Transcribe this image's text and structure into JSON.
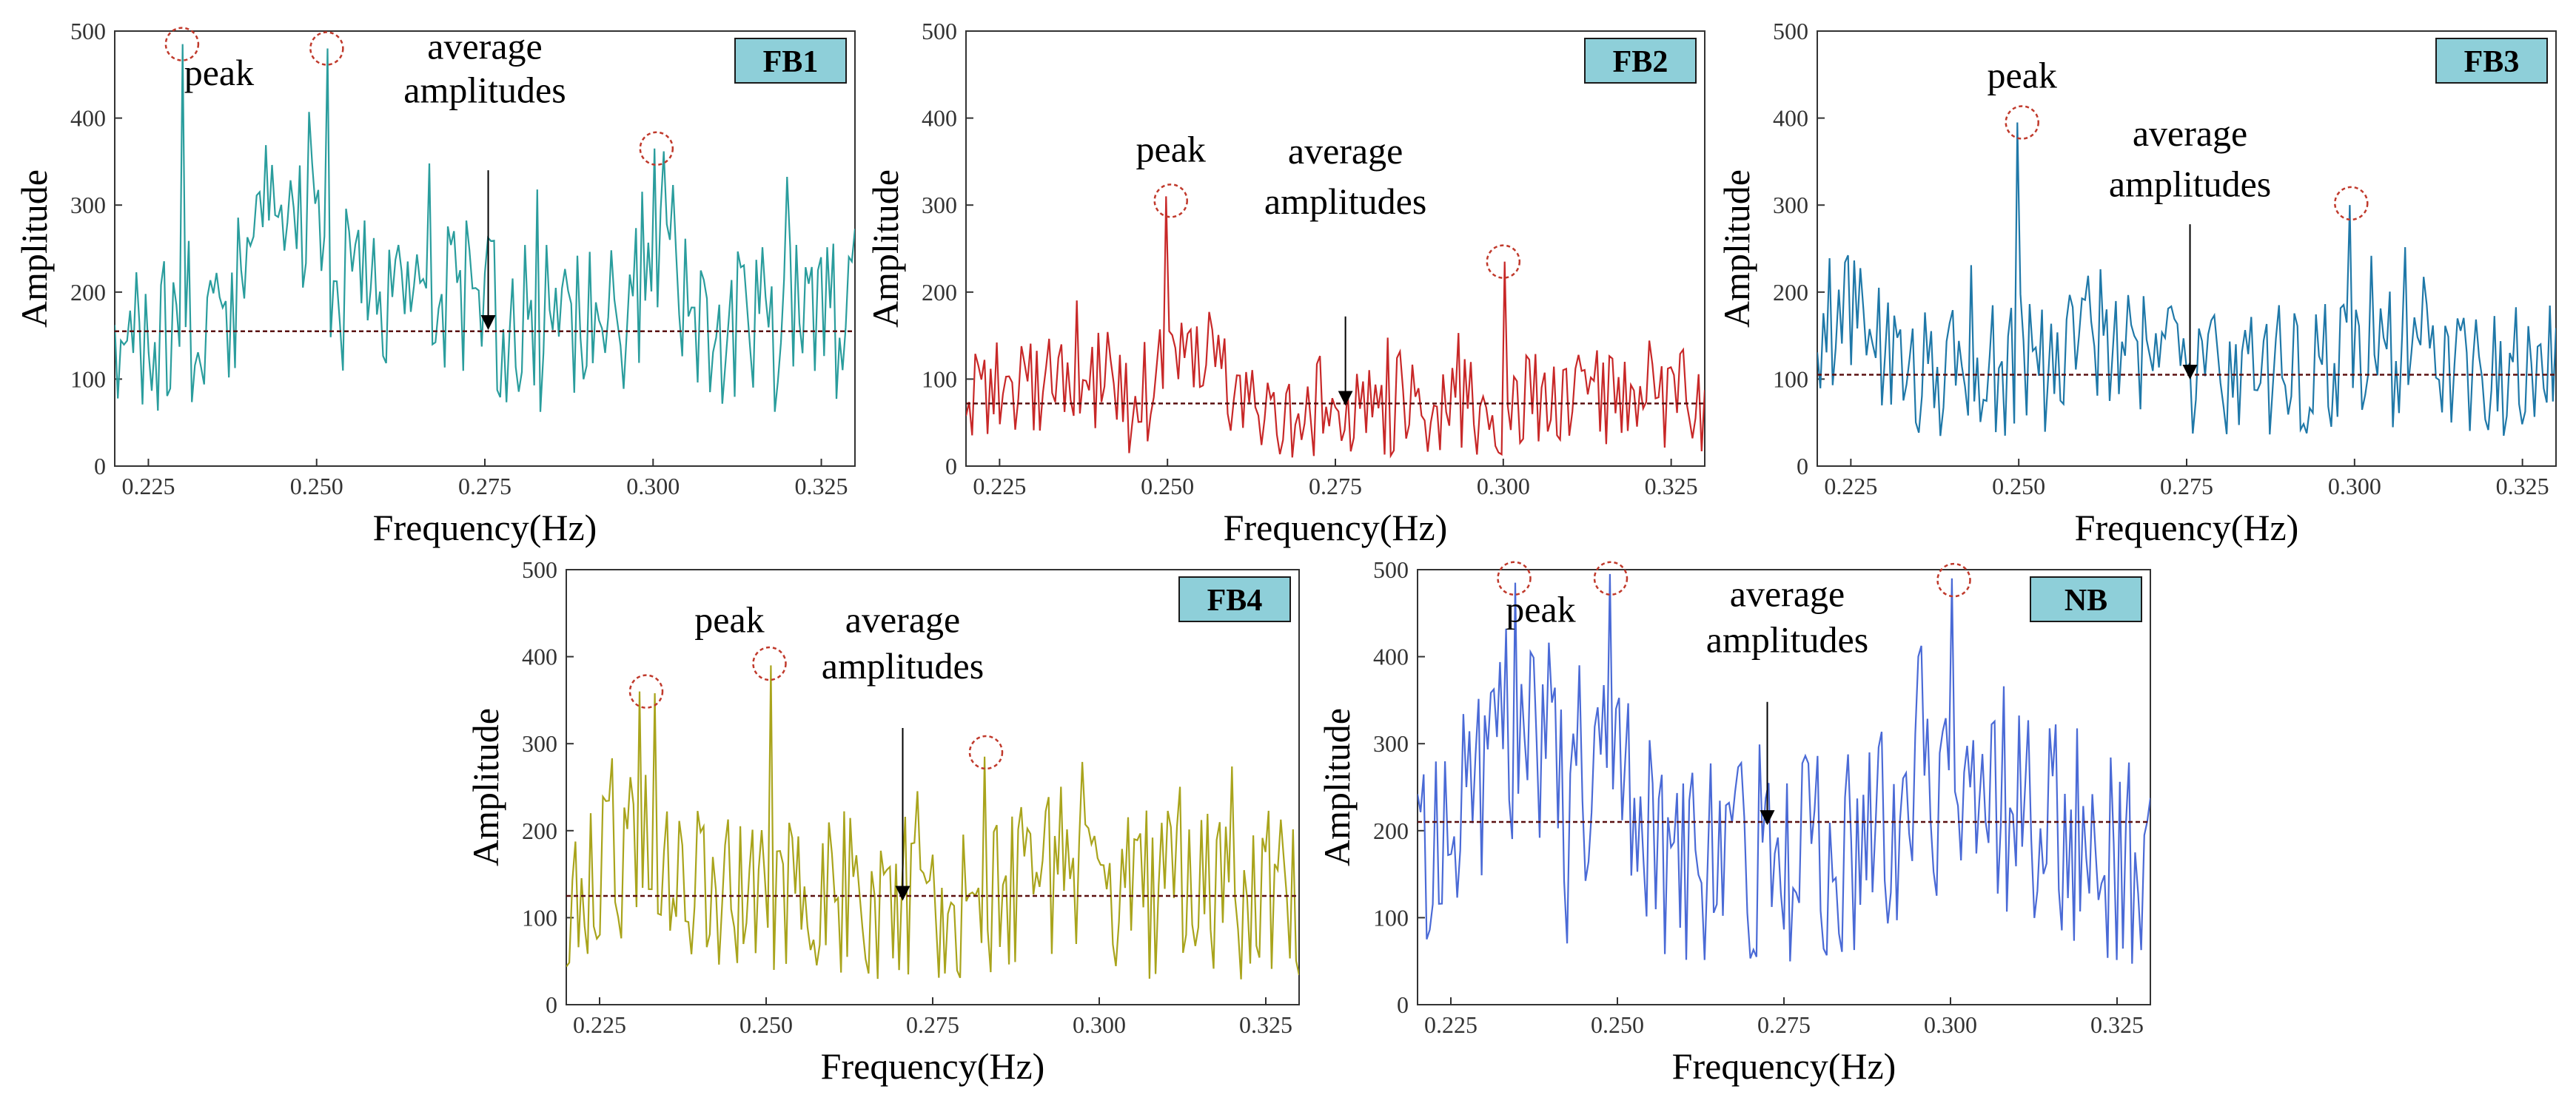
{
  "figure": {
    "peak_label": "peak",
    "average_label_line1": "average",
    "average_label_line2": "amplitudes",
    "xlabel": "Frequency(Hz)",
    "ylabel": "Amplitude",
    "badge_color": "#8ecfd9",
    "peak_circle_color": "#c0392b"
  },
  "chart_data": [
    {
      "type": "line",
      "title": "FB1",
      "xlabel": "Frequency(Hz)",
      "ylabel": "Amplitude",
      "xlim": [
        0.22,
        0.33
      ],
      "ylim": [
        0,
        500
      ],
      "xticks": [
        0.225,
        0.25,
        0.275,
        0.3,
        0.325
      ],
      "xtick_labels": [
        "0.225",
        "0.250",
        "0.275",
        "0.300",
        "0.325"
      ],
      "yticks": [
        0,
        100,
        200,
        300,
        400,
        500
      ],
      "ytick_labels": [
        "0",
        "100",
        "200",
        "300",
        "400",
        "500"
      ],
      "color": "#2a9d9d",
      "average": 155,
      "base": 160,
      "noise": 70,
      "seed": 11,
      "bumps": [
        [
          0.244,
          120,
          0.006
        ],
        [
          0.2495,
          110,
          0.004
        ],
        [
          0.264,
          60,
          0.008
        ],
        [
          0.301,
          90,
          0.004
        ]
      ],
      "peaks": [
        [
          0.23,
          485
        ],
        [
          0.2515,
          480
        ],
        [
          0.3,
          365
        ]
      ],
      "circled": [
        [
          0.23,
          485
        ],
        [
          0.2515,
          480
        ],
        [
          0.3005,
          365
        ]
      ],
      "annotations": {
        "peak": [
          0.2355,
          438
        ],
        "avg_line1": [
          0.275,
          468
        ],
        "avg_line2": [
          0.275,
          418
        ],
        "arrow": [
          0.2755,
          340,
          0.2755,
          165
        ]
      }
    },
    {
      "type": "line",
      "title": "FB2",
      "xlabel": "Frequency(Hz)",
      "ylabel": "Amplitude",
      "xlim": [
        0.22,
        0.33
      ],
      "ylim": [
        0,
        500
      ],
      "xticks": [
        0.225,
        0.25,
        0.275,
        0.3,
        0.325
      ],
      "xtick_labels": [
        "0.225",
        "0.250",
        "0.275",
        "0.300",
        "0.325"
      ],
      "yticks": [
        0,
        100,
        200,
        300,
        400,
        500
      ],
      "ytick_labels": [
        "0",
        "100",
        "200",
        "300",
        "400",
        "500"
      ],
      "color": "#c82828",
      "average": 72,
      "base": 72,
      "noise": 45,
      "seed": 23,
      "bumps": [
        [
          0.2505,
          80,
          0.003
        ],
        [
          0.236,
          40,
          0.006
        ],
        [
          0.256,
          35,
          0.004
        ]
      ],
      "peaks": [
        [
          0.25,
          310
        ],
        [
          0.3,
          235
        ]
      ],
      "circled": [
        [
          0.2505,
          305
        ],
        [
          0.3,
          235
        ]
      ],
      "annotations": {
        "peak": [
          0.2505,
          350
        ],
        "avg_line1": [
          0.2765,
          348
        ],
        "avg_line2": [
          0.2765,
          290
        ],
        "arrow": [
          0.2765,
          172,
          0.2765,
          78
        ]
      }
    },
    {
      "type": "line",
      "title": "FB3",
      "xlabel": "Frequency(Hz)",
      "ylabel": "Amplitude",
      "xlim": [
        0.22,
        0.33
      ],
      "ylim": [
        0,
        500
      ],
      "xticks": [
        0.225,
        0.25,
        0.275,
        0.3,
        0.325
      ],
      "xtick_labels": [
        "0.225",
        "0.250",
        "0.275",
        "0.300",
        "0.325"
      ],
      "yticks": [
        0,
        100,
        200,
        300,
        400,
        500
      ],
      "ytick_labels": [
        "0",
        "100",
        "200",
        "300",
        "400",
        "500"
      ],
      "color": "#1f78a8",
      "average": 105,
      "base": 110,
      "noise": 55,
      "seed": 37,
      "bumps": [
        [
          0.225,
          80,
          0.005
        ],
        [
          0.262,
          30,
          0.006
        ]
      ],
      "peaks": [
        [
          0.25,
          395
        ],
        [
          0.2995,
          300
        ]
      ],
      "circled": [
        [
          0.2505,
          395
        ],
        [
          0.2995,
          302
        ]
      ],
      "annotations": {
        "peak": [
          0.2505,
          435
        ],
        "avg_line1": [
          0.2755,
          368
        ],
        "avg_line2": [
          0.2755,
          310
        ],
        "arrow": [
          0.2755,
          278,
          0.2755,
          108
        ]
      }
    },
    {
      "type": "line",
      "title": "FB4",
      "xlabel": "Frequency(Hz)",
      "ylabel": "Amplitude",
      "xlim": [
        0.22,
        0.33
      ],
      "ylim": [
        0,
        500
      ],
      "xticks": [
        0.225,
        0.25,
        0.275,
        0.3,
        0.325
      ],
      "xtick_labels": [
        "0.225",
        "0.250",
        "0.275",
        "0.300",
        "0.325"
      ],
      "yticks": [
        0,
        100,
        200,
        300,
        400,
        500
      ],
      "ytick_labels": [
        "0",
        "100",
        "200",
        "300",
        "400",
        "500"
      ],
      "color": "#a9a41c",
      "average": 125,
      "base": 125,
      "noise": 70,
      "seed": 53,
      "bumps": [
        [
          0.229,
          60,
          0.006
        ],
        [
          0.296,
          40,
          0.006
        ]
      ],
      "peaks": [
        [
          0.231,
          360
        ],
        [
          0.2335,
          358
        ],
        [
          0.2505,
          390
        ],
        [
          0.283,
          285
        ]
      ],
      "circled": [
        [
          0.232,
          360
        ],
        [
          0.2505,
          392
        ],
        [
          0.283,
          290
        ]
      ],
      "annotations": {
        "peak": [
          0.2445,
          428
        ],
        "avg_line1": [
          0.2705,
          428
        ],
        "avg_line2": [
          0.2705,
          375
        ],
        "arrow": [
          0.2705,
          318,
          0.2705,
          128
        ]
      }
    },
    {
      "type": "line",
      "title": "NB",
      "xlabel": "Frequency(Hz)",
      "ylabel": "Amplitude",
      "xlim": [
        0.22,
        0.33
      ],
      "ylim": [
        0,
        500
      ],
      "xticks": [
        0.225,
        0.25,
        0.275,
        0.3,
        0.325
      ],
      "xtick_labels": [
        "0.225",
        "0.250",
        "0.275",
        "0.300",
        "0.325"
      ],
      "yticks": [
        0,
        100,
        200,
        300,
        400,
        500
      ],
      "ytick_labels": [
        "0",
        "100",
        "200",
        "300",
        "400",
        "500"
      ],
      "color": "#4a6ad6",
      "average": 210,
      "base": 170,
      "noise": 95,
      "seed": 71,
      "bumps": [
        [
          0.2345,
          170,
          0.005
        ],
        [
          0.2485,
          180,
          0.004
        ],
        [
          0.298,
          120,
          0.007
        ],
        [
          0.312,
          70,
          0.006
        ],
        [
          0.227,
          60,
          0.004
        ]
      ],
      "peaks": [
        [
          0.2345,
          485
        ],
        [
          0.249,
          495
        ],
        [
          0.3,
          490
        ]
      ],
      "circled": [
        [
          0.2345,
          490
        ],
        [
          0.249,
          490
        ],
        [
          0.3005,
          488
        ]
      ],
      "annotations": {
        "peak": [
          0.2385,
          440
        ],
        "avg_line1": [
          0.2755,
          458
        ],
        "avg_line2": [
          0.2755,
          405
        ],
        "arrow": [
          0.2725,
          348,
          0.2725,
          215
        ]
      }
    }
  ]
}
